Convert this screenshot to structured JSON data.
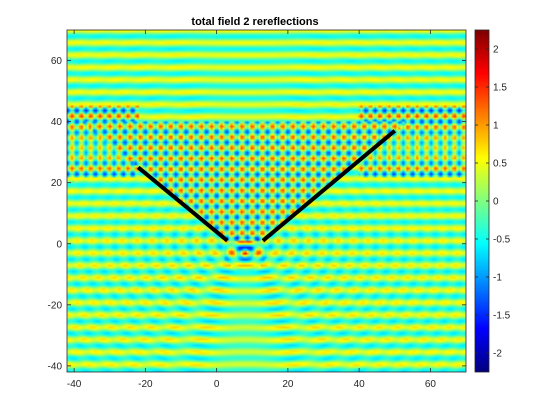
{
  "chart_data": {
    "type": "heatmap",
    "title": "total field 2 rereflections",
    "xlabel": "",
    "ylabel": "",
    "xlim": [
      -42,
      70
    ],
    "ylim": [
      -42,
      70
    ],
    "x_ticks": [
      -40,
      -20,
      0,
      20,
      40,
      60
    ],
    "y_ticks": [
      -40,
      -20,
      0,
      20,
      40,
      60
    ],
    "x_tick_labels": [
      "-40",
      "-20",
      "0",
      "20",
      "40",
      "60"
    ],
    "y_tick_labels": [
      "-40",
      "-20",
      "0",
      "20",
      "40",
      "60"
    ],
    "colorbar": {
      "range": [
        -2.25,
        2.25
      ],
      "ticks": [
        -2,
        -1.5,
        -1,
        -0.5,
        0,
        0.5,
        1,
        1.5,
        2
      ],
      "tick_labels": [
        "-2",
        "-1.5",
        "-1",
        "-0.5",
        "0",
        "0.5",
        "1",
        "1.5",
        "2"
      ],
      "colormap": "jet"
    },
    "reflector": {
      "color": "#000000",
      "segments": [
        {
          "x": [
            -22,
            3
          ],
          "y": [
            25,
            1
          ]
        },
        {
          "x": [
            13,
            50
          ],
          "y": [
            1,
            37
          ]
        }
      ]
    },
    "grid": false
  }
}
